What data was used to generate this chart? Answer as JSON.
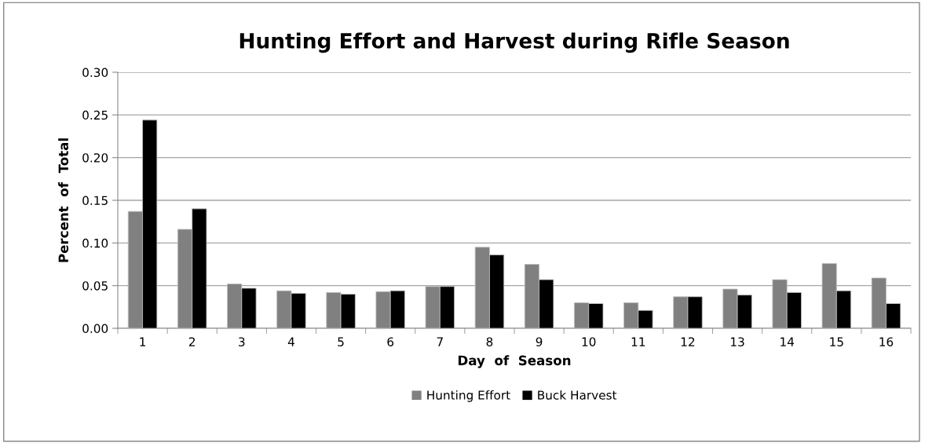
{
  "chart_data": {
    "type": "bar",
    "title": "Hunting Effort and Harvest during Rifle Season",
    "xlabel": "Day  of  Season",
    "ylabel": "Percent  of  Total",
    "categories": [
      "1",
      "2",
      "3",
      "4",
      "5",
      "6",
      "7",
      "8",
      "9",
      "10",
      "11",
      "12",
      "13",
      "14",
      "15",
      "16"
    ],
    "series": [
      {
        "name": "Hunting Effort",
        "color": "#808080",
        "values": [
          0.137,
          0.116,
          0.052,
          0.044,
          0.042,
          0.043,
          0.049,
          0.095,
          0.075,
          0.03,
          0.03,
          0.037,
          0.046,
          0.057,
          0.076,
          0.059
        ]
      },
      {
        "name": "Buck Harvest",
        "color": "#000000",
        "values": [
          0.244,
          0.14,
          0.047,
          0.041,
          0.04,
          0.044,
          0.049,
          0.086,
          0.057,
          0.029,
          0.021,
          0.037,
          0.039,
          0.042,
          0.044,
          0.029
        ]
      }
    ],
    "ylim": [
      0,
      0.3
    ],
    "yticks": [
      {
        "value": 0,
        "label": "0.00"
      },
      {
        "value": 0.05,
        "label": "0.05"
      },
      {
        "value": 0.1,
        "label": "0.10"
      },
      {
        "value": 0.15,
        "label": "0.15"
      },
      {
        "value": 0.2,
        "label": "0.20"
      },
      {
        "value": 0.25,
        "label": "0.25"
      },
      {
        "value": 0.3,
        "label": "0.30"
      }
    ],
    "grid": "y",
    "legend": "bottom"
  }
}
